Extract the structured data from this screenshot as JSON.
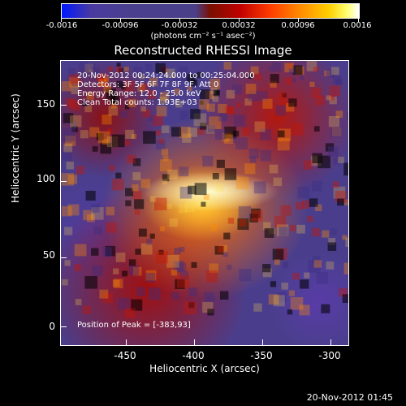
{
  "colorbar": {
    "ticks": [
      "-0.0016",
      "-0.00096",
      "-0.00032",
      "0.00032",
      "0.00096",
      "0.0016"
    ],
    "units": "(photons cm⁻² s⁻¹ asec⁻²)"
  },
  "title": "Reconstructed RHESSI Image",
  "annotations": {
    "line1": "20-Nov-2012 00:24:24.000 to 00:25:04.000",
    "line2": "Detectors: 3F 5F 6F 7F 8F 9F, Att 0",
    "line3": "Energy Range: 12.0 - 25.0 keV",
    "line4": "Clean    Total counts: 1.93E+03",
    "peak": "Position of Peak = [-383,93]"
  },
  "axes": {
    "xlabel": "Heliocentric X (arcsec)",
    "ylabel": "Heliocentric Y (arcsec)",
    "xticks": [
      "-450",
      "-400",
      "-350",
      "-300"
    ],
    "yticks": [
      "0",
      "50",
      "100",
      "150"
    ]
  },
  "timestamp": "20-Nov-2012 01:45",
  "colors": {
    "background": "#000000",
    "low": "#0018ff",
    "mid": "#4a3e8c",
    "high": "#ffffff"
  }
}
